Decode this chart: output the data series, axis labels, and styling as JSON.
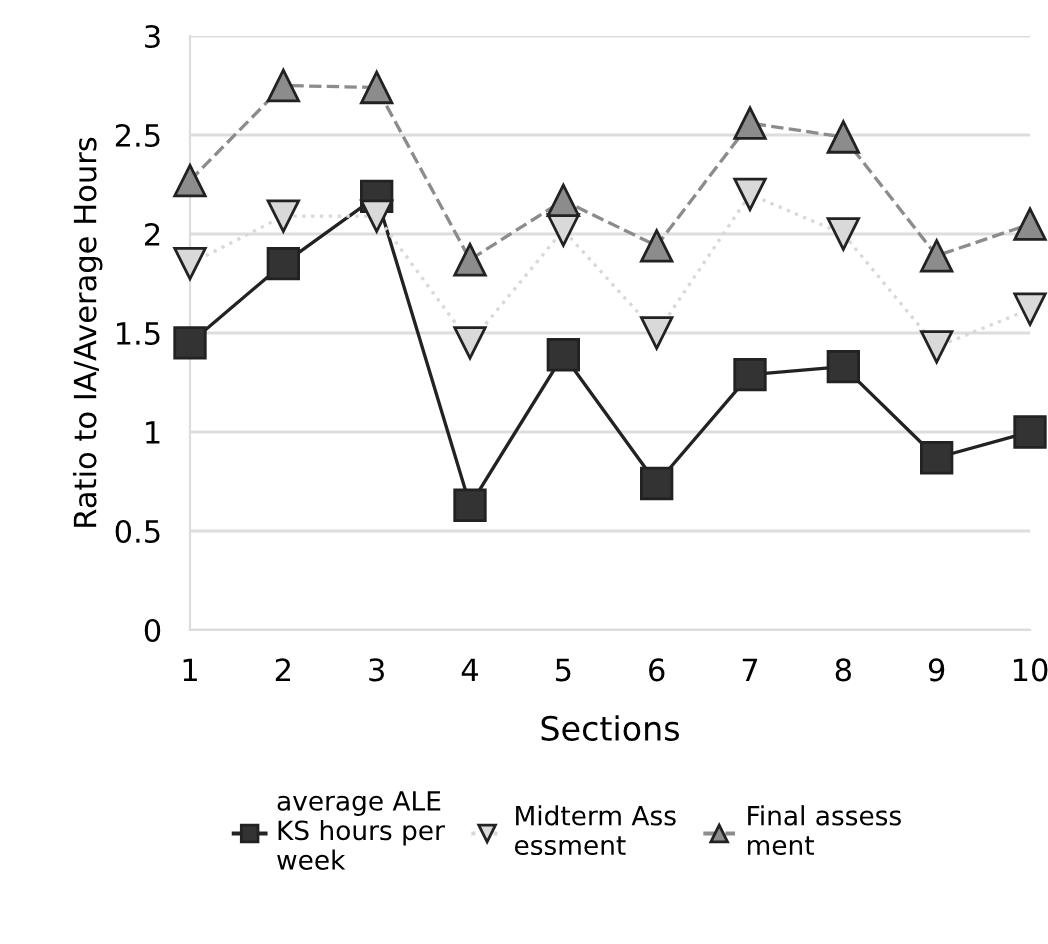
{
  "chart_data": {
    "type": "line",
    "xlabel": "Sections",
    "ylabel": "Ratio to IA/Average Hours",
    "x": [
      1,
      2,
      3,
      4,
      5,
      6,
      7,
      8,
      9,
      10
    ],
    "xlim": [
      1,
      10
    ],
    "xticks": [
      1,
      2,
      3,
      4,
      5,
      6,
      7,
      8,
      9,
      10
    ],
    "ylim": [
      0,
      3
    ],
    "yticks": [
      0,
      0.5,
      1,
      1.5,
      2,
      2.5,
      3
    ],
    "grid": "y",
    "legend": "bottom",
    "series": [
      {
        "name": "average ALE\nKS hours per\nweek",
        "color": "#333333",
        "marker": "square",
        "line_style": "solid",
        "values": [
          1.45,
          1.85,
          2.19,
          0.63,
          1.39,
          0.74,
          1.29,
          1.33,
          0.87,
          1.0
        ]
      },
      {
        "name": "Midterm Ass\nessment",
        "color": "#d9d9d9",
        "marker": "triangle_down",
        "line_style": "dotted",
        "values": [
          1.85,
          2.09,
          2.09,
          1.45,
          2.02,
          1.5,
          2.2,
          2.0,
          1.43,
          1.62
        ]
      },
      {
        "name": "Final assess\nment",
        "color": "#8c8c8c",
        "marker": "triangle",
        "line_style": "dashed",
        "values": [
          2.27,
          2.75,
          2.74,
          1.87,
          2.17,
          1.94,
          2.56,
          2.49,
          1.89,
          2.05
        ]
      }
    ]
  }
}
